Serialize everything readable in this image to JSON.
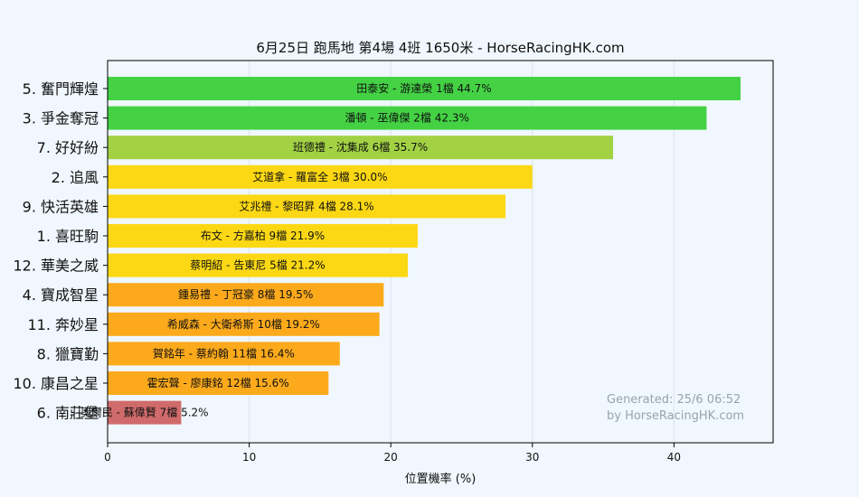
{
  "colors": {
    "background": "#f0f7fe",
    "plot_background": "#f0f7fe",
    "axes": "#000000",
    "grid": "#dde3ea",
    "watermark": "#9aa3ab"
  },
  "watermark": {
    "line1": "Generated: 25/6 06:52",
    "line2": "by HorseRacingHK.com"
  },
  "chart_data": {
    "type": "bar",
    "orientation": "horizontal",
    "title": "6月25日  跑馬地  第4場  4班  1650米 - HorseRacingHK.com",
    "xlabel": "位置機率 (%)",
    "ylabel": "",
    "xlim": [
      0,
      47
    ],
    "xticks": [
      0,
      10,
      20,
      30,
      40
    ],
    "grid": true,
    "categories": [
      "5. 奮門輝煌",
      "3. 爭金奪冠",
      "7. 好好紛",
      "2. 追風",
      "9. 快活英雄",
      "1. 喜旺駒",
      "12. 華美之威",
      "4. 寶成智星",
      "11. 奔妙星",
      "8. 獵寶勤",
      "10. 康昌之星",
      "6. 南莊堡"
    ],
    "values": [
      44.7,
      42.3,
      35.7,
      30.0,
      28.1,
      21.9,
      21.2,
      19.5,
      19.2,
      16.4,
      15.6,
      5.2
    ],
    "bar_labels": [
      "田泰安 - 游達榮 1檔  44.7%",
      "潘頓 - 巫偉傑 2檔  42.3%",
      "班德禮 - 沈集成 6檔  35.7%",
      "艾道拿 - 羅富全 3檔  30.0%",
      "艾兆禮 - 黎昭昇 4檔  28.1%",
      "布文 - 方嘉柏 9檔  21.9%",
      "蔡明紹 - 告東尼 5檔  21.2%",
      "鍾易禮 - 丁冠豪 8檔  19.5%",
      "希威森 - 大衛希斯 10檔  19.2%",
      "賀銘年 - 蔡約翰 11檔  16.4%",
      "霍宏聲 - 廖康銘 12檔  15.6%",
      "奧爾民 - 蘇偉賢 7檔  5.2%"
    ],
    "bar_colors": [
      "#44d244",
      "#44d244",
      "#a2d244",
      "#fcd814",
      "#fcd814",
      "#fcd814",
      "#fcd814",
      "#fcaa1c",
      "#fcaa1c",
      "#fcaa1c",
      "#fcaa1c",
      "#d06b6b"
    ]
  }
}
